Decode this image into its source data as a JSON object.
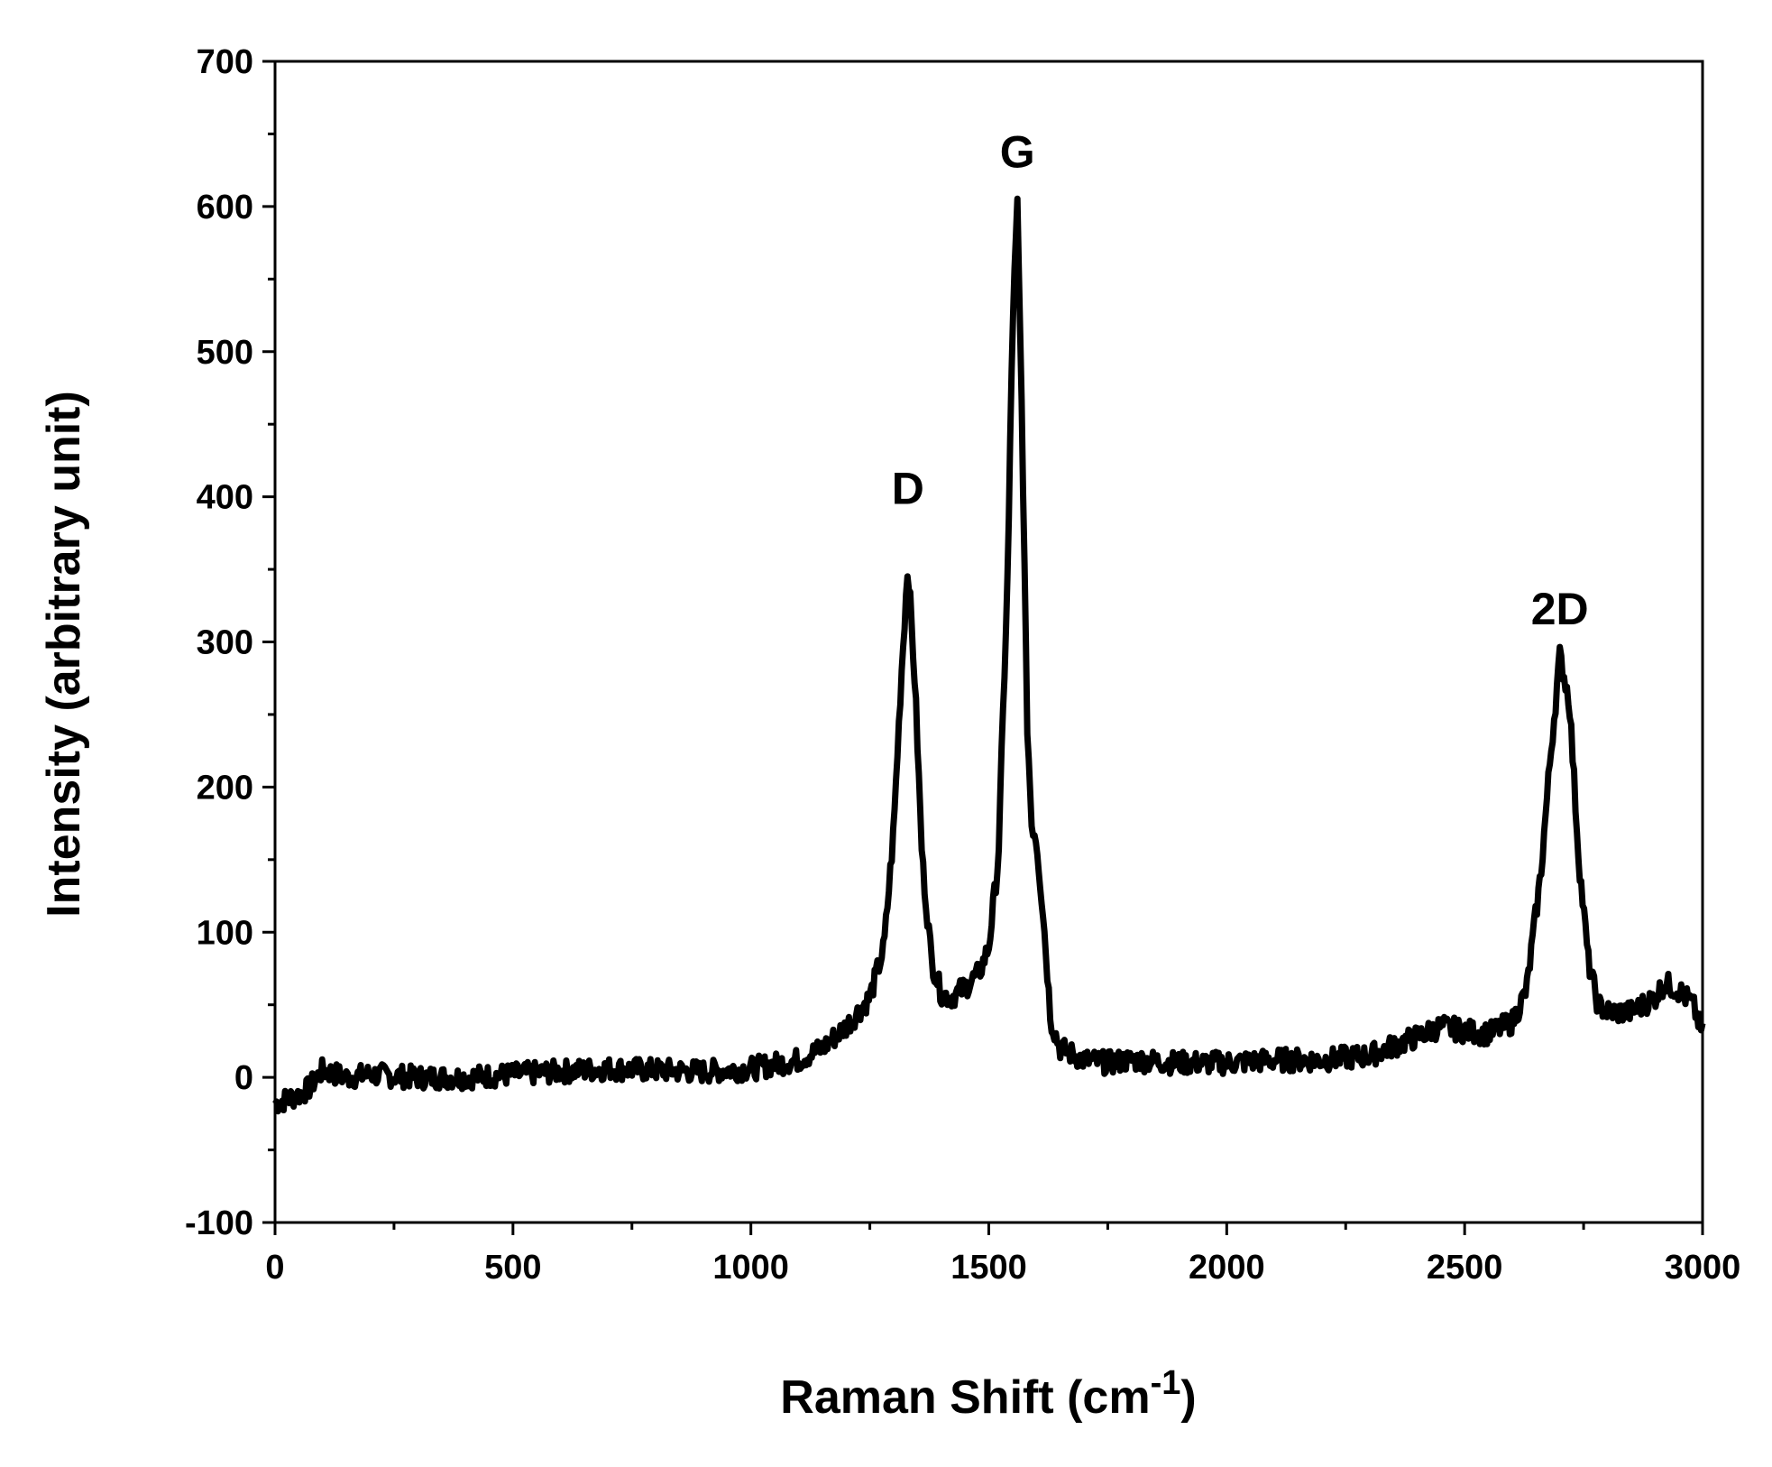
{
  "chart_data": {
    "type": "line",
    "xlabel": "Raman Shift (cm",
    "xlabel_superscript": "-1",
    "xlabel_suffix": ")",
    "ylabel": "Intensity (arbitrary unit)",
    "xlim": [
      0,
      3000
    ],
    "ylim": [
      -100,
      700
    ],
    "xticks": [
      0,
      500,
      1000,
      1500,
      2000,
      2500,
      3000
    ],
    "yticks": [
      -100,
      0,
      100,
      200,
      300,
      400,
      500,
      600,
      700
    ],
    "xtick_labels": [
      "0",
      "500",
      "1000",
      "1500",
      "2000",
      "2500",
      "3000"
    ],
    "ytick_labels": [
      "-100",
      "0",
      "100",
      "200",
      "300",
      "400",
      "500",
      "600",
      "700"
    ],
    "grid": false,
    "line_color": "#000000",
    "annotations": [
      {
        "text": "D",
        "x": 1330,
        "y": 395
      },
      {
        "text": "G",
        "x": 1560,
        "y": 627
      },
      {
        "text": "2D",
        "x": 2700,
        "y": 312
      }
    ],
    "series": [
      {
        "x": [
          0,
          50,
          70,
          100,
          150,
          200,
          300,
          400,
          500,
          600,
          700,
          800,
          900,
          1000,
          1100,
          1150,
          1200,
          1250,
          1280,
          1300,
          1315,
          1330,
          1345,
          1360,
          1380,
          1400,
          1420,
          1450,
          1480,
          1500,
          1520,
          1540,
          1550,
          1560,
          1570,
          1580,
          1590,
          1600,
          1615,
          1630,
          1650,
          1700,
          1750,
          1800,
          1900,
          2000,
          2100,
          2200,
          2300,
          2400,
          2450,
          2500,
          2550,
          2600,
          2630,
          2660,
          2680,
          2700,
          2720,
          2740,
          2760,
          2780,
          2800,
          2850,
          2900,
          2920,
          2950,
          2980,
          3000
        ],
        "y": [
          -18,
          -12,
          -8,
          5,
          0,
          2,
          0,
          0,
          2,
          4,
          6,
          5,
          4,
          6,
          12,
          20,
          35,
          55,
          90,
          170,
          270,
          355,
          270,
          150,
          80,
          58,
          55,
          62,
          72,
          90,
          150,
          350,
          520,
          600,
          450,
          250,
          175,
          165,
          110,
          40,
          20,
          12,
          10,
          12,
          10,
          10,
          12,
          12,
          15,
          28,
          35,
          32,
          30,
          38,
          60,
          140,
          220,
          290,
          260,
          150,
          80,
          50,
          45,
          45,
          55,
          65,
          60,
          50,
          30
        ]
      }
    ]
  }
}
